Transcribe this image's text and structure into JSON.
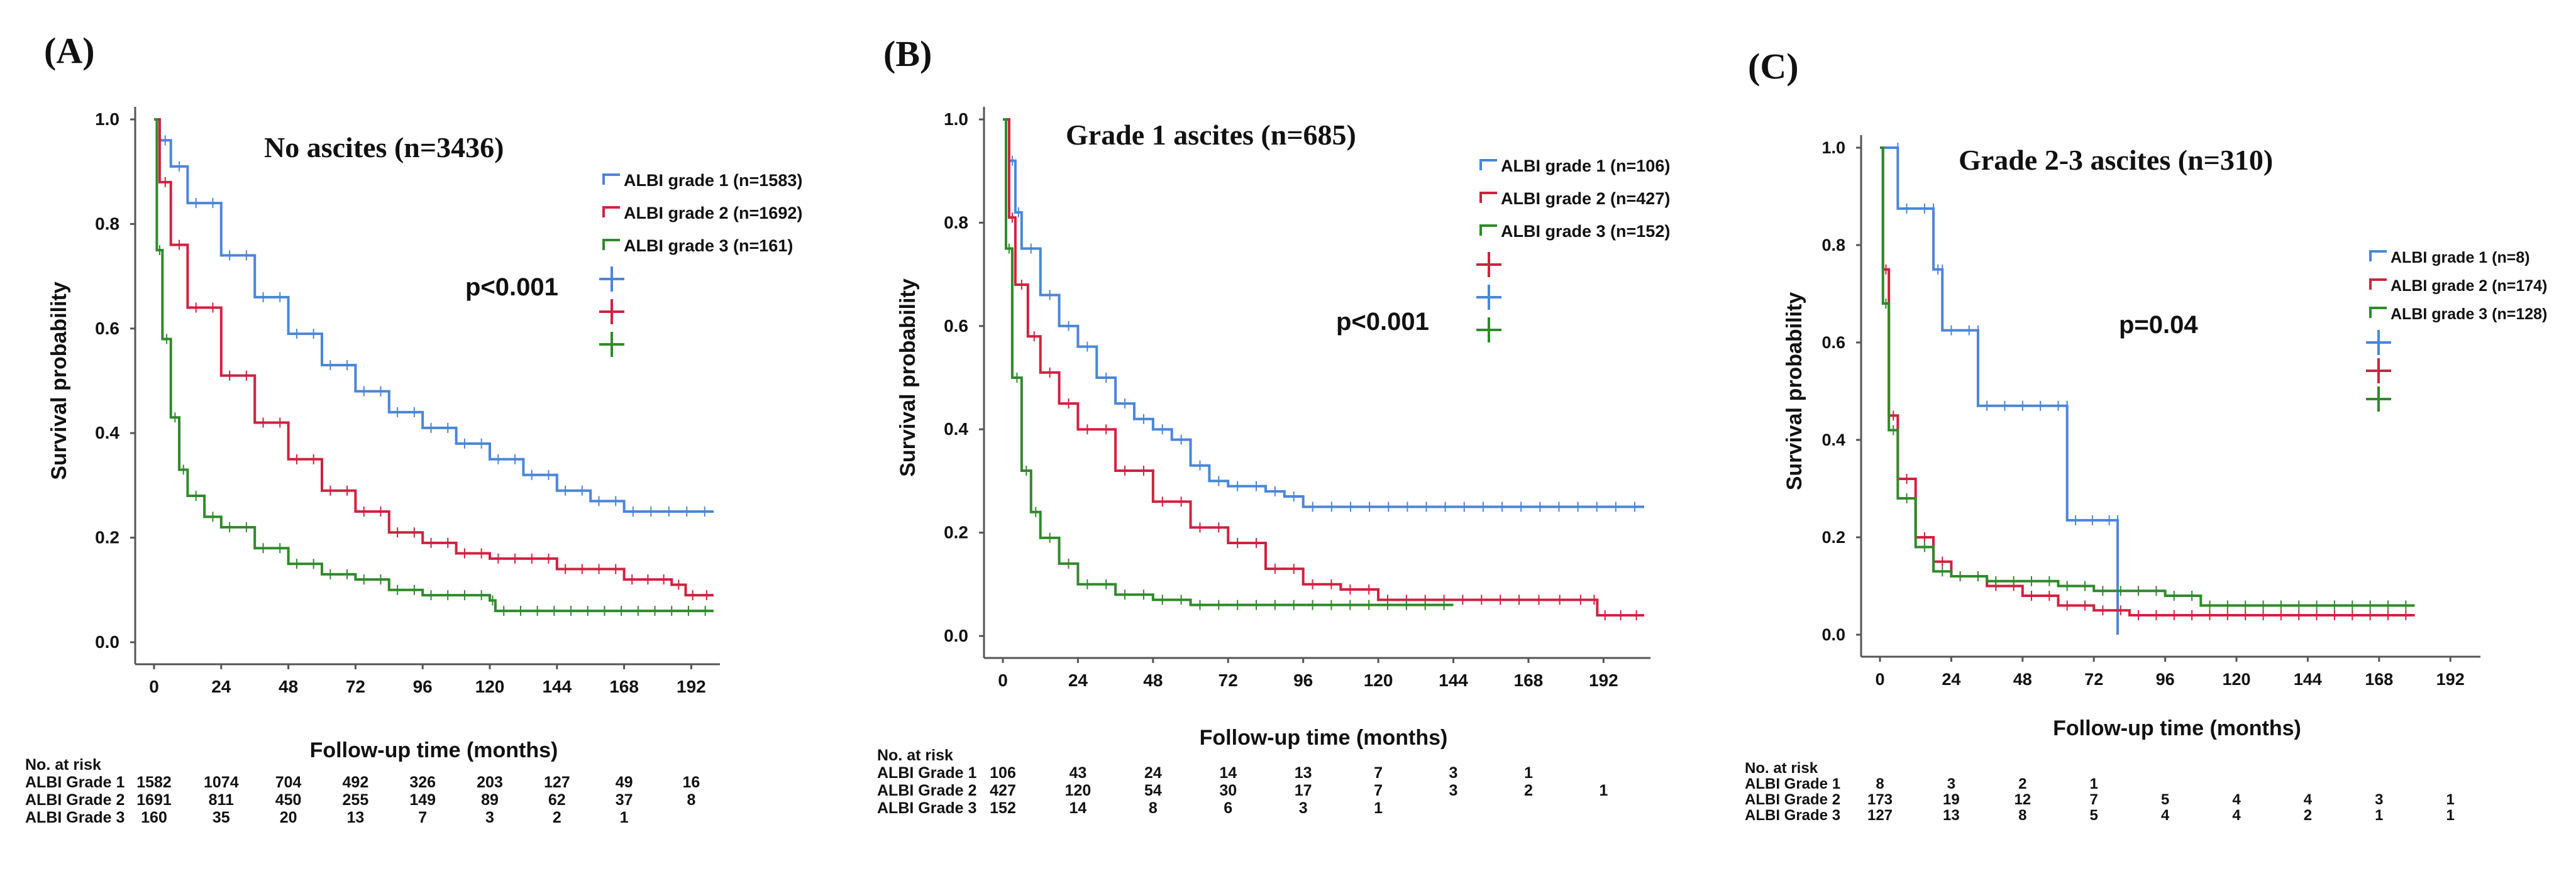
{
  "colors": {
    "grade1": "#4a86d8",
    "grade2": "#d0213f",
    "grade3": "#2f8a2a",
    "axis": "#555555",
    "text": "#111111"
  },
  "chart_data": [
    {
      "type": "line",
      "panel_label": "(A)",
      "title": "No ascites (n=3436)",
      "p_value": "p<0.001",
      "xlabel": "Follow-up time (months)",
      "ylabel": "Survival probability",
      "xlim": [
        0,
        200
      ],
      "ylim": [
        0,
        1.0
      ],
      "xticks": [
        0,
        24,
        48,
        72,
        96,
        120,
        144,
        168,
        192
      ],
      "yticks": [
        0.0,
        0.2,
        0.4,
        0.6,
        0.8,
        1.0
      ],
      "legend": [
        "ALBI grade 1 (n=1583)",
        "ALBI grade 2 (n=1692)",
        "ALBI grade 3 (n=161)"
      ],
      "series": [
        {
          "name": "ALBI grade 1 (n=1583)",
          "color_key": "grade1",
          "points": [
            [
              0,
              1.0
            ],
            [
              2,
              0.96
            ],
            [
              6,
              0.91
            ],
            [
              12,
              0.84
            ],
            [
              24,
              0.74
            ],
            [
              36,
              0.66
            ],
            [
              48,
              0.59
            ],
            [
              60,
              0.53
            ],
            [
              72,
              0.48
            ],
            [
              84,
              0.44
            ],
            [
              96,
              0.41
            ],
            [
              108,
              0.38
            ],
            [
              120,
              0.35
            ],
            [
              132,
              0.32
            ],
            [
              144,
              0.29
            ],
            [
              156,
              0.27
            ],
            [
              168,
              0.25
            ],
            [
              200,
              0.25
            ]
          ]
        },
        {
          "name": "ALBI grade 2 (n=1692)",
          "color_key": "grade2",
          "points": [
            [
              0,
              1.0
            ],
            [
              2,
              0.88
            ],
            [
              6,
              0.76
            ],
            [
              12,
              0.64
            ],
            [
              24,
              0.51
            ],
            [
              36,
              0.42
            ],
            [
              48,
              0.35
            ],
            [
              60,
              0.29
            ],
            [
              72,
              0.25
            ],
            [
              84,
              0.21
            ],
            [
              96,
              0.19
            ],
            [
              108,
              0.17
            ],
            [
              120,
              0.16
            ],
            [
              144,
              0.14
            ],
            [
              168,
              0.12
            ],
            [
              185,
              0.11
            ],
            [
              190,
              0.09
            ],
            [
              200,
              0.09
            ]
          ]
        },
        {
          "name": "ALBI grade 3 (n=161)",
          "color_key": "grade3",
          "points": [
            [
              0,
              1.0
            ],
            [
              1,
              0.75
            ],
            [
              3,
              0.58
            ],
            [
              6,
              0.43
            ],
            [
              9,
              0.33
            ],
            [
              12,
              0.28
            ],
            [
              18,
              0.24
            ],
            [
              24,
              0.22
            ],
            [
              36,
              0.18
            ],
            [
              48,
              0.15
            ],
            [
              60,
              0.13
            ],
            [
              72,
              0.12
            ],
            [
              84,
              0.1
            ],
            [
              96,
              0.09
            ],
            [
              120,
              0.08
            ],
            [
              122,
              0.06
            ],
            [
              200,
              0.06
            ]
          ]
        }
      ],
      "risk_table": {
        "header": "No. at risk",
        "rows": [
          {
            "label": "ALBI Grade 1",
            "values": [
              "1582",
              "1074",
              "704",
              "492",
              "326",
              "203",
              "127",
              "49",
              "16"
            ]
          },
          {
            "label": "ALBI Grade 2",
            "values": [
              "1691",
              "811",
              "450",
              "255",
              "149",
              "89",
              "62",
              "37",
              "8"
            ]
          },
          {
            "label": "ALBI Grade 3",
            "values": [
              "160",
              "35",
              "20",
              "13",
              "7",
              "3",
              "2",
              "1",
              ""
            ]
          }
        ]
      }
    },
    {
      "type": "line",
      "panel_label": "(B)",
      "title": "Grade 1 ascites (n=685)",
      "p_value": "p<0.001",
      "xlabel": "Follow-up time (months)",
      "ylabel": "Survival probability",
      "xlim": [
        0,
        205
      ],
      "ylim": [
        0,
        1.0
      ],
      "xticks": [
        0,
        24,
        48,
        72,
        96,
        120,
        144,
        168,
        192
      ],
      "yticks": [
        0.0,
        0.2,
        0.4,
        0.6,
        0.8,
        1.0
      ],
      "legend": [
        "ALBI grade 1 (n=106)",
        "ALBI grade 2 (n=427)",
        "ALBI grade 3 (n=152)"
      ],
      "series": [
        {
          "name": "ALBI grade 1 (n=106)",
          "color_key": "grade1",
          "points": [
            [
              0,
              1.0
            ],
            [
              2,
              0.92
            ],
            [
              4,
              0.82
            ],
            [
              6,
              0.75
            ],
            [
              12,
              0.66
            ],
            [
              18,
              0.6
            ],
            [
              24,
              0.56
            ],
            [
              30,
              0.5
            ],
            [
              36,
              0.45
            ],
            [
              42,
              0.42
            ],
            [
              48,
              0.4
            ],
            [
              54,
              0.38
            ],
            [
              60,
              0.33
            ],
            [
              66,
              0.3
            ],
            [
              72,
              0.29
            ],
            [
              84,
              0.28
            ],
            [
              90,
              0.27
            ],
            [
              96,
              0.25
            ],
            [
              205,
              0.25
            ]
          ]
        },
        {
          "name": "ALBI grade 2 (n=427)",
          "color_key": "grade2",
          "points": [
            [
              0,
              1.0
            ],
            [
              2,
              0.81
            ],
            [
              4,
              0.68
            ],
            [
              8,
              0.58
            ],
            [
              12,
              0.51
            ],
            [
              18,
              0.45
            ],
            [
              24,
              0.4
            ],
            [
              36,
              0.32
            ],
            [
              48,
              0.26
            ],
            [
              60,
              0.21
            ],
            [
              72,
              0.18
            ],
            [
              84,
              0.13
            ],
            [
              96,
              0.1
            ],
            [
              108,
              0.09
            ],
            [
              120,
              0.07
            ],
            [
              150,
              0.07
            ],
            [
              168,
              0.07
            ],
            [
              188,
              0.07
            ],
            [
              190,
              0.04
            ],
            [
              205,
              0.04
            ]
          ]
        },
        {
          "name": "ALBI grade 3 (n=152)",
          "color_key": "grade3",
          "points": [
            [
              0,
              1.0
            ],
            [
              1,
              0.75
            ],
            [
              3,
              0.5
            ],
            [
              6,
              0.32
            ],
            [
              9,
              0.24
            ],
            [
              12,
              0.19
            ],
            [
              18,
              0.14
            ],
            [
              24,
              0.1
            ],
            [
              36,
              0.08
            ],
            [
              48,
              0.07
            ],
            [
              60,
              0.06
            ],
            [
              144,
              0.06
            ]
          ]
        }
      ],
      "risk_table": {
        "header": "No. at risk",
        "rows": [
          {
            "label": "ALBI Grade 1",
            "values": [
              "106",
              "43",
              "24",
              "14",
              "13",
              "7",
              "3",
              "1",
              ""
            ]
          },
          {
            "label": "ALBI Grade 2",
            "values": [
              "427",
              "120",
              "54",
              "30",
              "17",
              "7",
              "3",
              "2",
              "1"
            ]
          },
          {
            "label": "ALBI Grade 3",
            "values": [
              "152",
              "14",
              "8",
              "6",
              "3",
              "1",
              "",
              "",
              ""
            ]
          }
        ]
      }
    },
    {
      "type": "line",
      "panel_label": "(C)",
      "title": "Grade 2-3 ascites (n=310)",
      "p_value": "p=0.04",
      "xlabel": "Follow-up time (months)",
      "ylabel": "Survival probability",
      "xlim": [
        0,
        200
      ],
      "ylim": [
        0,
        1.0
      ],
      "xticks": [
        0,
        24,
        48,
        72,
        96,
        120,
        144,
        168,
        192
      ],
      "yticks": [
        0.0,
        0.2,
        0.4,
        0.6,
        0.8,
        1.0
      ],
      "legend": [
        "ALBI grade 1 (n=8)",
        "ALBI grade 2 (n=174)",
        "ALBI grade 3 (n=128)"
      ],
      "series": [
        {
          "name": "ALBI grade 1 (n=8)",
          "color_key": "grade1",
          "points": [
            [
              0,
              1.0
            ],
            [
              6,
              1.0
            ],
            [
              6,
              0.875
            ],
            [
              18,
              0.875
            ],
            [
              18,
              0.75
            ],
            [
              21,
              0.75
            ],
            [
              21,
              0.625
            ],
            [
              33,
              0.625
            ],
            [
              33,
              0.47
            ],
            [
              63,
              0.47
            ],
            [
              63,
              0.235
            ],
            [
              80,
              0.235
            ],
            [
              80,
              0.0
            ]
          ]
        },
        {
          "name": "ALBI grade 2 (n=174)",
          "color_key": "grade2",
          "points": [
            [
              0,
              1.0
            ],
            [
              1,
              0.75
            ],
            [
              3,
              0.45
            ],
            [
              6,
              0.32
            ],
            [
              12,
              0.2
            ],
            [
              18,
              0.15
            ],
            [
              24,
              0.12
            ],
            [
              36,
              0.1
            ],
            [
              48,
              0.08
            ],
            [
              60,
              0.06
            ],
            [
              72,
              0.05
            ],
            [
              84,
              0.04
            ],
            [
              180,
              0.04
            ]
          ]
        },
        {
          "name": "ALBI grade 3 (n=128)",
          "color_key": "grade3",
          "points": [
            [
              0,
              1.0
            ],
            [
              1,
              0.68
            ],
            [
              3,
              0.42
            ],
            [
              6,
              0.28
            ],
            [
              12,
              0.18
            ],
            [
              18,
              0.13
            ],
            [
              24,
              0.12
            ],
            [
              36,
              0.11
            ],
            [
              48,
              0.11
            ],
            [
              60,
              0.1
            ],
            [
              72,
              0.09
            ],
            [
              96,
              0.08
            ],
            [
              108,
              0.06
            ],
            [
              180,
              0.06
            ]
          ]
        }
      ],
      "risk_table": {
        "header": "No. at risk",
        "rows": [
          {
            "label": "ALBI Grade 1",
            "values": [
              "8",
              "3",
              "2",
              "1",
              "",
              "",
              "",
              "",
              ""
            ]
          },
          {
            "label": "ALBI Grade 2",
            "values": [
              "173",
              "19",
              "12",
              "7",
              "5",
              "4",
              "4",
              "3",
              "1"
            ]
          },
          {
            "label": "ALBI Grade 3",
            "values": [
              "127",
              "13",
              "8",
              "5",
              "4",
              "4",
              "2",
              "1",
              "1"
            ]
          }
        ]
      }
    }
  ]
}
